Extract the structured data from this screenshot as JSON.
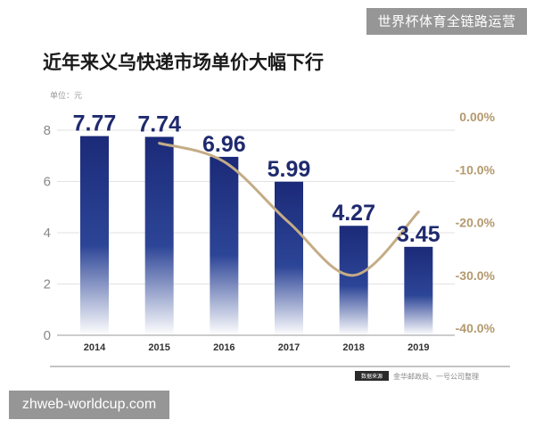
{
  "watermarks": {
    "top_right": "世界杯体育全链路运营",
    "bottom_left": "zhweb-worldcup.com"
  },
  "chart_data": {
    "type": "bar",
    "title": "近年来义乌快递市场单价大幅下行",
    "unit_label": "单位：元",
    "categories": [
      "2014",
      "2015",
      "2016",
      "2017",
      "2018",
      "2019"
    ],
    "series": [
      {
        "values": [
          7.77,
          7.74,
          6.96,
          5.99,
          4.27,
          3.45
        ],
        "axis": "left",
        "kind": "bar"
      },
      {
        "values": [
          null,
          -5.0,
          -8.5,
          -20.0,
          -30.0,
          -18.0
        ],
        "axis": "right",
        "kind": "line"
      }
    ],
    "data_labels": [
      "7.77",
      "7.74",
      "6.96",
      "5.99",
      "4.27",
      "3.45"
    ],
    "y_left": {
      "lim": [
        0,
        8
      ],
      "ticks": [
        0,
        2,
        4,
        6,
        8
      ]
    },
    "y_right": {
      "lim": [
        -40,
        0
      ],
      "ticks": [
        "0.00%",
        "-10.0%",
        "-20.0%",
        "-30.0%",
        "-40.0%"
      ],
      "values": [
        0,
        -10,
        -20,
        -30,
        -40
      ]
    },
    "grid": true,
    "source_tag": "数据来源",
    "source_text": "金华邮政局、一号公司整理",
    "colors": {
      "bar_top": "#1b2a78",
      "bar_bottom": "#ffffff",
      "line": "#c4ac86",
      "right_axis_text": "#b3996e",
      "value_label": "#1f2a6e"
    }
  }
}
